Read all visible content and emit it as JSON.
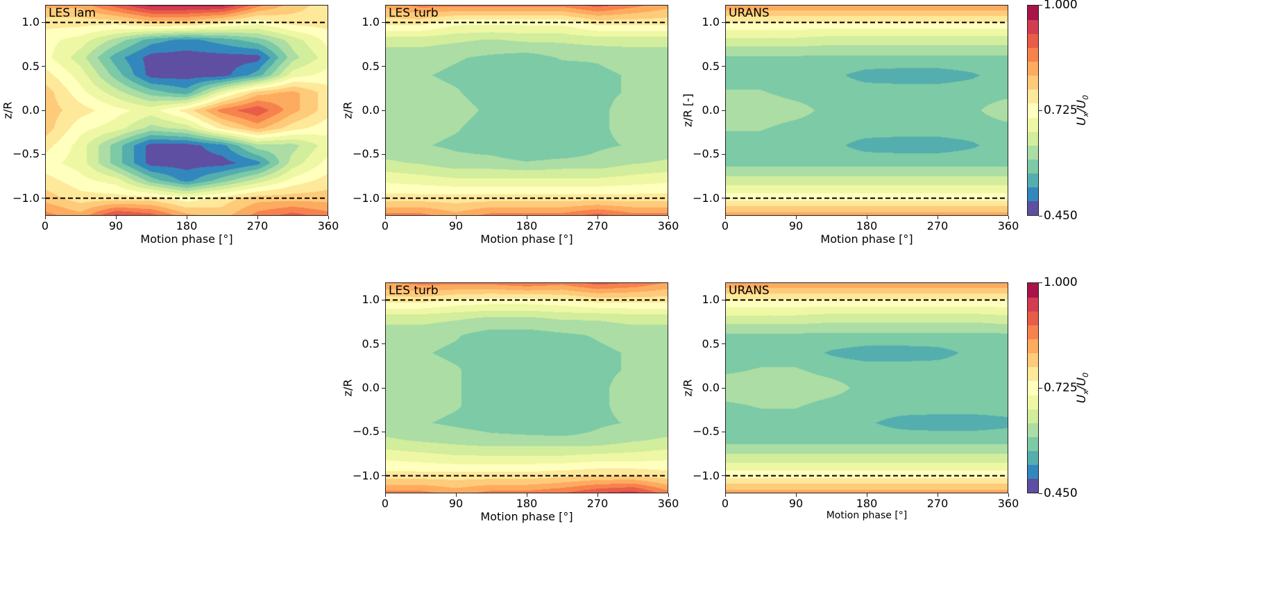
{
  "colormap": {
    "name": "Spectral_r",
    "levels": [
      0.45,
      0.4867,
      0.5233,
      0.56,
      0.5967,
      0.6333,
      0.67,
      0.7067,
      0.7433,
      0.78,
      0.8167,
      0.8533,
      0.89,
      0.9267,
      0.9633,
      1.0
    ],
    "colors": [
      "#5e4fa2",
      "#3288bd",
      "#54aead",
      "#7ccaa6",
      "#abdda4",
      "#d2ed9c",
      "#eef8a4",
      "#ffffbe",
      "#fee89a",
      "#fecb7a",
      "#fdab5f",
      "#f7824d",
      "#e85d48",
      "#d43d4f",
      "#a8144a"
    ],
    "label": {
      "u": "U",
      "x_sub": "x",
      "sep": "/",
      "u0": "U",
      "zero_sub": "0"
    },
    "ticks": [
      1.0,
      0.725,
      0.45
    ],
    "tick_labels": [
      "1.000",
      "0.725",
      "0.450"
    ]
  },
  "chart_data": [
    {
      "type": "heatmap",
      "subtype": "filled-contour",
      "title": "LES lam",
      "xlabel": "Motion phase [°]",
      "ylabel": "z/R",
      "xlim": [
        0,
        360
      ],
      "ylim": [
        -1.2,
        1.2
      ],
      "xticks": [
        0,
        90,
        180,
        270,
        360
      ],
      "xtick_labels": [
        "0",
        "90",
        "180",
        "270",
        "360"
      ],
      "yticks": [
        1.0,
        0.5,
        0.0,
        -0.5,
        -1.0
      ],
      "ytick_labels": [
        "1.0",
        "0.5",
        "0.0",
        "−0.5",
        "−1.0"
      ],
      "reference_lines": [
        1.0,
        -1.0
      ],
      "colorbar": false,
      "x": [
        0,
        45,
        90,
        135,
        180,
        225,
        270,
        315,
        360
      ],
      "z": [
        1.2,
        1.0,
        0.8,
        0.6,
        0.4,
        0.2,
        0.0,
        -0.2,
        -0.4,
        -0.6,
        -0.8,
        -1.0,
        -1.2
      ],
      "values": [
        [
          0.83,
          0.83,
          0.91,
          0.98,
          0.98,
          0.98,
          0.87,
          0.8,
          0.76
        ],
        [
          0.76,
          0.76,
          0.76,
          0.8,
          0.8,
          0.76,
          0.72,
          0.76,
          0.76
        ],
        [
          0.72,
          0.69,
          0.62,
          0.54,
          0.51,
          0.54,
          0.58,
          0.65,
          0.72
        ],
        [
          0.72,
          0.65,
          0.54,
          0.47,
          0.47,
          0.47,
          0.47,
          0.62,
          0.69
        ],
        [
          0.76,
          0.69,
          0.58,
          0.47,
          0.47,
          0.47,
          0.54,
          0.69,
          0.72
        ],
        [
          0.8,
          0.72,
          0.65,
          0.58,
          0.54,
          0.69,
          0.8,
          0.83,
          0.76
        ],
        [
          0.8,
          0.76,
          0.72,
          0.69,
          0.76,
          0.87,
          0.92,
          0.83,
          0.76
        ],
        [
          0.8,
          0.72,
          0.69,
          0.62,
          0.65,
          0.76,
          0.83,
          0.76,
          0.72
        ],
        [
          0.76,
          0.69,
          0.58,
          0.47,
          0.47,
          0.51,
          0.62,
          0.62,
          0.69
        ],
        [
          0.72,
          0.69,
          0.58,
          0.47,
          0.47,
          0.47,
          0.51,
          0.65,
          0.72
        ],
        [
          0.76,
          0.72,
          0.69,
          0.58,
          0.51,
          0.58,
          0.65,
          0.72,
          0.76
        ],
        [
          0.8,
          0.76,
          0.76,
          0.76,
          0.72,
          0.76,
          0.8,
          0.8,
          0.8
        ],
        [
          0.87,
          0.83,
          0.94,
          0.91,
          0.83,
          0.8,
          0.87,
          0.91,
          0.87
        ]
      ]
    },
    {
      "type": "heatmap",
      "subtype": "filled-contour",
      "title": "LES turb",
      "xlabel": "Motion phase [°]",
      "ylabel": "z/R",
      "xlim": [
        0,
        360
      ],
      "ylim": [
        -1.2,
        1.2
      ],
      "xticks": [
        0,
        90,
        180,
        270,
        360
      ],
      "xtick_labels": [
        "0",
        "90",
        "180",
        "270",
        "360"
      ],
      "yticks": [
        1.0,
        0.5,
        0.0,
        -0.5,
        -1.0
      ],
      "ytick_labels": [
        "1.0",
        "0.5",
        "0.0",
        "−0.5",
        "−1.0"
      ],
      "reference_lines": [
        1.0,
        -1.0
      ],
      "colorbar": false,
      "x": [
        0,
        45,
        90,
        135,
        180,
        225,
        270,
        315,
        360
      ],
      "z": [
        1.2,
        1.0,
        0.8,
        0.6,
        0.4,
        0.2,
        0.0,
        -0.2,
        -0.4,
        -0.6,
        -0.8,
        -1.0,
        -1.2
      ],
      "values": [
        [
          0.83,
          0.87,
          0.87,
          0.87,
          0.87,
          0.87,
          0.91,
          0.87,
          0.83
        ],
        [
          0.76,
          0.76,
          0.72,
          0.72,
          0.72,
          0.72,
          0.76,
          0.76,
          0.76
        ],
        [
          0.65,
          0.65,
          0.64,
          0.63,
          0.64,
          0.64,
          0.65,
          0.65,
          0.65
        ],
        [
          0.61,
          0.61,
          0.6,
          0.59,
          0.58,
          0.6,
          0.6,
          0.61,
          0.61
        ],
        [
          0.61,
          0.6,
          0.59,
          0.58,
          0.57,
          0.58,
          0.59,
          0.6,
          0.61
        ],
        [
          0.62,
          0.61,
          0.6,
          0.58,
          0.56,
          0.58,
          0.59,
          0.6,
          0.61
        ],
        [
          0.63,
          0.62,
          0.61,
          0.59,
          0.57,
          0.57,
          0.59,
          0.61,
          0.62
        ],
        [
          0.62,
          0.61,
          0.6,
          0.58,
          0.56,
          0.57,
          0.59,
          0.61,
          0.61
        ],
        [
          0.61,
          0.6,
          0.59,
          0.58,
          0.56,
          0.56,
          0.59,
          0.6,
          0.61
        ],
        [
          0.64,
          0.63,
          0.61,
          0.61,
          0.6,
          0.61,
          0.61,
          0.63,
          0.64
        ],
        [
          0.7,
          0.69,
          0.68,
          0.68,
          0.68,
          0.68,
          0.68,
          0.69,
          0.7
        ],
        [
          0.76,
          0.76,
          0.76,
          0.76,
          0.76,
          0.76,
          0.76,
          0.76,
          0.76
        ],
        [
          0.87,
          0.87,
          0.83,
          0.87,
          0.87,
          0.87,
          0.91,
          0.87,
          0.87
        ]
      ]
    },
    {
      "type": "heatmap",
      "subtype": "filled-contour",
      "title": "URANS",
      "xlabel": "Motion phase [°]",
      "ylabel": "z/R [-]",
      "xlim": [
        0,
        360
      ],
      "ylim": [
        -1.2,
        1.2
      ],
      "xticks": [
        0,
        90,
        180,
        270,
        360
      ],
      "xtick_labels": [
        "0",
        "90",
        "180",
        "270",
        "360"
      ],
      "yticks": [
        1.0,
        0.5,
        0.0,
        -0.5,
        -1.0
      ],
      "ytick_labels": [
        "1.0",
        "0.5",
        "0.0",
        "−0.5",
        "−1.0"
      ],
      "reference_lines": [
        1.0,
        -1.0
      ],
      "colorbar": true,
      "x": [
        0,
        45,
        90,
        135,
        180,
        225,
        270,
        315,
        360
      ],
      "z": [
        1.2,
        1.0,
        0.8,
        0.6,
        0.4,
        0.2,
        0.0,
        -0.2,
        -0.4,
        -0.6,
        -0.8,
        -1.0,
        -1.2
      ],
      "values": [
        [
          0.85,
          0.85,
          0.85,
          0.85,
          0.85,
          0.85,
          0.85,
          0.85,
          0.85
        ],
        [
          0.74,
          0.74,
          0.74,
          0.74,
          0.74,
          0.74,
          0.74,
          0.74,
          0.74
        ],
        [
          0.66,
          0.66,
          0.66,
          0.65,
          0.65,
          0.65,
          0.65,
          0.65,
          0.65
        ],
        [
          0.59,
          0.59,
          0.59,
          0.59,
          0.59,
          0.59,
          0.59,
          0.59,
          0.59
        ],
        [
          0.58,
          0.58,
          0.58,
          0.57,
          0.545,
          0.54,
          0.54,
          0.555,
          0.58
        ],
        [
          0.6,
          0.6,
          0.585,
          0.58,
          0.58,
          0.58,
          0.58,
          0.58,
          0.585
        ],
        [
          0.62,
          0.62,
          0.61,
          0.585,
          0.58,
          0.58,
          0.58,
          0.59,
          0.62
        ],
        [
          0.6,
          0.6,
          0.585,
          0.58,
          0.58,
          0.58,
          0.58,
          0.58,
          0.585
        ],
        [
          0.58,
          0.58,
          0.58,
          0.57,
          0.545,
          0.54,
          0.54,
          0.555,
          0.58
        ],
        [
          0.585,
          0.585,
          0.585,
          0.585,
          0.585,
          0.585,
          0.585,
          0.585,
          0.585
        ],
        [
          0.65,
          0.65,
          0.65,
          0.65,
          0.65,
          0.65,
          0.65,
          0.65,
          0.65
        ],
        [
          0.73,
          0.73,
          0.73,
          0.73,
          0.73,
          0.73,
          0.73,
          0.73,
          0.73
        ],
        [
          0.84,
          0.84,
          0.84,
          0.84,
          0.84,
          0.84,
          0.84,
          0.84,
          0.84
        ]
      ]
    },
    {
      "type": "heatmap",
      "subtype": "filled-contour",
      "title": "LES turb",
      "xlabel": "Motion phase [°]",
      "ylabel": "z/R",
      "xlim": [
        0,
        360
      ],
      "ylim": [
        -1.2,
        1.2
      ],
      "xticks": [
        0,
        90,
        180,
        270,
        360
      ],
      "xtick_labels": [
        "0",
        "90",
        "180",
        "270",
        "360"
      ],
      "yticks": [
        1.0,
        0.5,
        0.0,
        -0.5,
        -1.0
      ],
      "ytick_labels": [
        "1.0",
        "0.5",
        "0.0",
        "−0.5",
        "−1.0"
      ],
      "reference_lines": [
        1.0,
        -1.0
      ],
      "colorbar": false,
      "x": [
        0,
        45,
        90,
        135,
        180,
        225,
        270,
        315,
        360
      ],
      "z": [
        1.2,
        1.0,
        0.8,
        0.6,
        0.4,
        0.2,
        0.0,
        -0.2,
        -0.4,
        -0.6,
        -0.8,
        -1.0,
        -1.2
      ],
      "values": [
        [
          0.85,
          0.87,
          0.87,
          0.87,
          0.89,
          0.87,
          0.91,
          0.89,
          0.85
        ],
        [
          0.76,
          0.76,
          0.74,
          0.73,
          0.73,
          0.74,
          0.76,
          0.76,
          0.76
        ],
        [
          0.65,
          0.65,
          0.64,
          0.63,
          0.63,
          0.64,
          0.64,
          0.65,
          0.65
        ],
        [
          0.61,
          0.61,
          0.6,
          0.58,
          0.58,
          0.59,
          0.6,
          0.61,
          0.61
        ],
        [
          0.61,
          0.6,
          0.59,
          0.58,
          0.57,
          0.57,
          0.59,
          0.6,
          0.61
        ],
        [
          0.62,
          0.61,
          0.6,
          0.58,
          0.56,
          0.57,
          0.59,
          0.6,
          0.61
        ],
        [
          0.63,
          0.62,
          0.6,
          0.58,
          0.56,
          0.57,
          0.59,
          0.61,
          0.62
        ],
        [
          0.62,
          0.61,
          0.6,
          0.58,
          0.56,
          0.56,
          0.59,
          0.61,
          0.61
        ],
        [
          0.61,
          0.6,
          0.59,
          0.58,
          0.57,
          0.56,
          0.59,
          0.6,
          0.61
        ],
        [
          0.64,
          0.63,
          0.62,
          0.61,
          0.61,
          0.61,
          0.61,
          0.63,
          0.64
        ],
        [
          0.7,
          0.69,
          0.68,
          0.68,
          0.68,
          0.68,
          0.69,
          0.69,
          0.7
        ],
        [
          0.76,
          0.76,
          0.76,
          0.76,
          0.76,
          0.77,
          0.78,
          0.78,
          0.76
        ],
        [
          0.87,
          0.87,
          0.84,
          0.87,
          0.87,
          0.89,
          0.93,
          0.95,
          0.87
        ]
      ]
    },
    {
      "type": "heatmap",
      "subtype": "filled-contour",
      "title": "URANS",
      "xlabel": "Motion phase [°]",
      "ylabel": "z/R",
      "xlim": [
        0,
        360
      ],
      "ylim": [
        -1.2,
        1.2
      ],
      "xticks": [
        0,
        90,
        180,
        270,
        360
      ],
      "xtick_labels": [
        "0",
        "90",
        "180",
        "270",
        "360"
      ],
      "yticks": [
        1.0,
        0.5,
        0.0,
        -0.5,
        -1.0
      ],
      "ytick_labels": [
        "1.0",
        "0.5",
        "0.0",
        "−0.5",
        "−1.0"
      ],
      "reference_lines": [
        1.0,
        -1.0
      ],
      "colorbar": true,
      "x": [
        0,
        45,
        90,
        135,
        180,
        225,
        270,
        315,
        360
      ],
      "z": [
        1.2,
        1.0,
        0.8,
        0.6,
        0.4,
        0.2,
        0.0,
        -0.2,
        -0.4,
        -0.6,
        -0.8,
        -1.0,
        -1.2
      ],
      "values": [
        [
          0.85,
          0.85,
          0.85,
          0.85,
          0.85,
          0.85,
          0.85,
          0.85,
          0.85
        ],
        [
          0.74,
          0.74,
          0.74,
          0.74,
          0.74,
          0.74,
          0.74,
          0.74,
          0.74
        ],
        [
          0.66,
          0.66,
          0.66,
          0.65,
          0.65,
          0.65,
          0.65,
          0.65,
          0.66
        ],
        [
          0.59,
          0.59,
          0.59,
          0.59,
          0.59,
          0.59,
          0.59,
          0.59,
          0.59
        ],
        [
          0.58,
          0.58,
          0.58,
          0.555,
          0.54,
          0.54,
          0.545,
          0.57,
          0.58
        ],
        [
          0.59,
          0.6,
          0.6,
          0.585,
          0.58,
          0.58,
          0.58,
          0.58,
          0.58
        ],
        [
          0.62,
          0.62,
          0.62,
          0.61,
          0.585,
          0.58,
          0.58,
          0.58,
          0.58
        ],
        [
          0.59,
          0.6,
          0.6,
          0.585,
          0.58,
          0.58,
          0.58,
          0.58,
          0.58
        ],
        [
          0.58,
          0.58,
          0.58,
          0.58,
          0.565,
          0.545,
          0.54,
          0.54,
          0.55
        ],
        [
          0.585,
          0.585,
          0.585,
          0.585,
          0.585,
          0.585,
          0.585,
          0.585,
          0.585
        ],
        [
          0.65,
          0.65,
          0.65,
          0.65,
          0.65,
          0.65,
          0.65,
          0.65,
          0.65
        ],
        [
          0.73,
          0.73,
          0.73,
          0.73,
          0.73,
          0.73,
          0.73,
          0.73,
          0.73
        ],
        [
          0.84,
          0.84,
          0.84,
          0.84,
          0.84,
          0.84,
          0.84,
          0.84,
          0.84
        ]
      ]
    }
  ]
}
